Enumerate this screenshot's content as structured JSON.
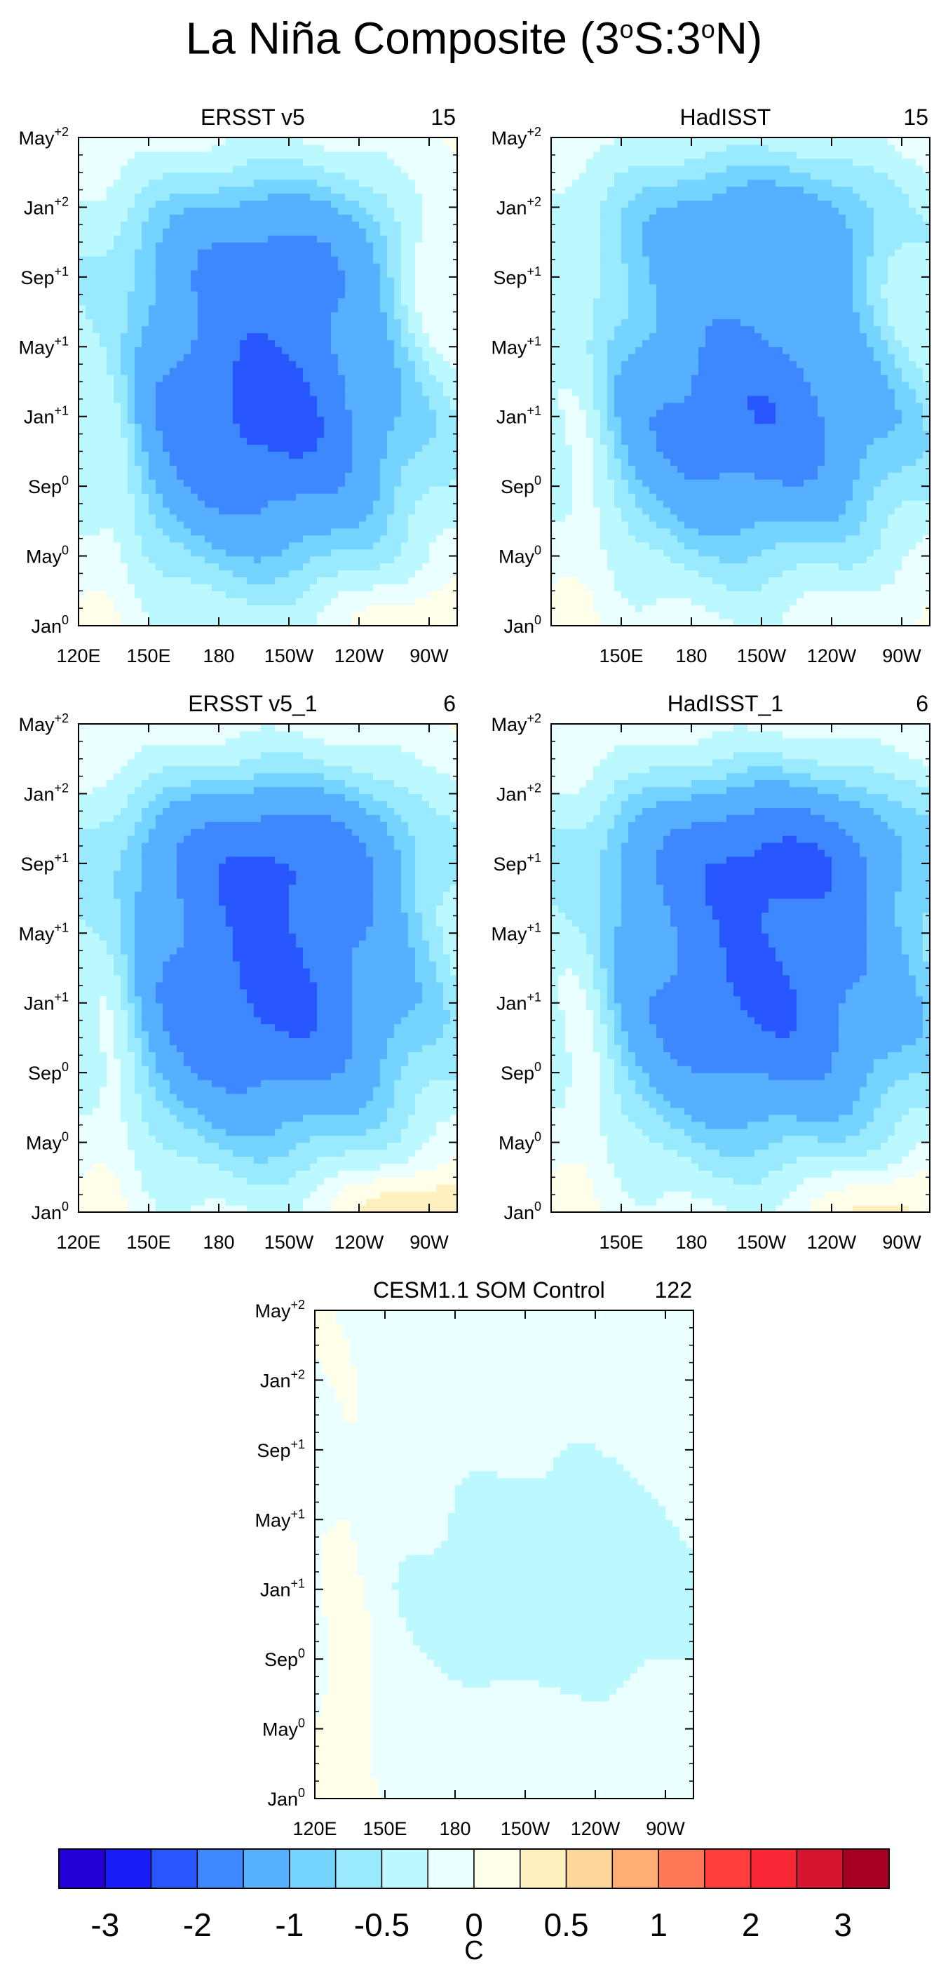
{
  "title": "La Niña Composite (3°S:3°N)",
  "title_parts": {
    "main": "La Niña Composite (3",
    "deg1": "o",
    "mid": "S:3",
    "deg2": "o",
    "end": "N)"
  },
  "chart_data": [
    {
      "type": "heatmap",
      "title": "ERSST v5",
      "count": "15",
      "x_ticks": [
        "120E",
        "150E",
        "180",
        "150W",
        "120W",
        "90W"
      ],
      "x_range_lon_east": [
        120,
        282
      ],
      "y_ticks": [
        {
          "base": "Jan",
          "sup": "0"
        },
        {
          "base": "May",
          "sup": "0"
        },
        {
          "base": "Sep",
          "sup": "0"
        },
        {
          "base": "Jan",
          "sup": "+1"
        },
        {
          "base": "May",
          "sup": "+1"
        },
        {
          "base": "Sep",
          "sup": "+1"
        },
        {
          "base": "Jan",
          "sup": "+2"
        },
        {
          "base": "May",
          "sup": "+2"
        }
      ],
      "y_range_months": [
        0,
        28
      ],
      "field": {
        "center_lon": 198,
        "center_month": 12,
        "lon_sigma": 48,
        "month_sigma": 6.2,
        "peak": -2.2,
        "second_center_month": 22,
        "second_peak": -1.0,
        "west_warm": 0.45,
        "east_warm_late": 0.5,
        "early_east_warm": 0.35
      }
    },
    {
      "type": "heatmap",
      "title": "HadISST",
      "count": "15",
      "x_ticks": [
        "150E",
        "180",
        "150W",
        "120W",
        "90W"
      ],
      "x_range_lon_east": [
        120,
        282
      ],
      "y_ticks": [
        {
          "base": "Jan",
          "sup": "0"
        },
        {
          "base": "May",
          "sup": "0"
        },
        {
          "base": "Sep",
          "sup": "0"
        },
        {
          "base": "Jan",
          "sup": "+1"
        },
        {
          "base": "May",
          "sup": "+1"
        },
        {
          "base": "Sep",
          "sup": "+1"
        },
        {
          "base": "Jan",
          "sup": "+2"
        },
        {
          "base": "May",
          "sup": "+2"
        }
      ],
      "y_range_months": [
        0,
        28
      ],
      "field": {
        "center_lon": 205,
        "center_month": 12,
        "lon_sigma": 52,
        "month_sigma": 5.8,
        "peak": -1.9,
        "second_center_month": 23,
        "second_peak": -1.1,
        "west_warm": 0.4,
        "east_warm_late": 0.3,
        "early_east_warm": 0.15
      }
    },
    {
      "type": "heatmap",
      "title": "ERSST v5_1",
      "count": "6",
      "x_ticks": [
        "120E",
        "150E",
        "180",
        "150W",
        "120W",
        "90W"
      ],
      "x_range_lon_east": [
        120,
        282
      ],
      "y_ticks": [
        {
          "base": "Jan",
          "sup": "0"
        },
        {
          "base": "May",
          "sup": "0"
        },
        {
          "base": "Sep",
          "sup": "0"
        },
        {
          "base": "Jan",
          "sup": "+1"
        },
        {
          "base": "May",
          "sup": "+1"
        },
        {
          "base": "Sep",
          "sup": "+1"
        },
        {
          "base": "Jan",
          "sup": "+2"
        },
        {
          "base": "May",
          "sup": "+2"
        }
      ],
      "y_range_months": [
        0,
        28
      ],
      "field": {
        "center_lon": 200,
        "center_month": 12,
        "lon_sigma": 50,
        "month_sigma": 6.0,
        "peak": -2.1,
        "second_center_month": 21,
        "second_peak": -1.3,
        "west_warm": 0.5,
        "east_warm_late": 0.2,
        "early_east_warm": 0.6
      }
    },
    {
      "type": "heatmap",
      "title": "HadISST_1",
      "count": "6",
      "x_ticks": [
        "150E",
        "180",
        "150W",
        "120W",
        "90W"
      ],
      "x_range_lon_east": [
        120,
        282
      ],
      "y_ticks": [
        {
          "base": "Jan",
          "sup": "0"
        },
        {
          "base": "May",
          "sup": "0"
        },
        {
          "base": "Sep",
          "sup": "0"
        },
        {
          "base": "Jan",
          "sup": "+1"
        },
        {
          "base": "May",
          "sup": "+1"
        },
        {
          "base": "Sep",
          "sup": "+1"
        },
        {
          "base": "Jan",
          "sup": "+2"
        },
        {
          "base": "May",
          "sup": "+2"
        }
      ],
      "y_range_months": [
        0,
        28
      ],
      "field": {
        "center_lon": 210,
        "center_month": 12,
        "lon_sigma": 54,
        "month_sigma": 6.0,
        "peak": -2.0,
        "second_center_month": 21,
        "second_peak": -1.4,
        "west_warm": 0.45,
        "east_warm_late": 0.2,
        "early_east_warm": 0.5
      }
    },
    {
      "type": "heatmap",
      "title": "CESM1.1 SOM Control",
      "count": "122",
      "x_ticks": [
        "120E",
        "150E",
        "180",
        "150W",
        "120W",
        "90W"
      ],
      "x_range_lon_east": [
        120,
        282
      ],
      "y_ticks": [
        {
          "base": "Jan",
          "sup": "0"
        },
        {
          "base": "May",
          "sup": "0"
        },
        {
          "base": "Sep",
          "sup": "0"
        },
        {
          "base": "Jan",
          "sup": "+1"
        },
        {
          "base": "May",
          "sup": "+1"
        },
        {
          "base": "Sep",
          "sup": "+1"
        },
        {
          "base": "Jan",
          "sup": "+2"
        },
        {
          "base": "May",
          "sup": "+2"
        }
      ],
      "y_range_months": [
        0,
        28
      ],
      "field": {
        "center_lon": 225,
        "center_month": 12,
        "lon_sigma": 60,
        "month_sigma": 5.5,
        "peak": -0.45,
        "second_center_month": 22,
        "second_peak": -0.1,
        "west_warm": 0.2,
        "east_warm_late": 0.0,
        "early_east_warm": 0.0
      }
    }
  ],
  "colorbar": {
    "unit": "C",
    "labels": [
      "-3",
      "-2",
      "-1",
      "-0.5",
      "0",
      "0.5",
      "1",
      "2",
      "3"
    ],
    "levels": [
      -3.0,
      -2.5,
      -2.0,
      -1.5,
      -1.0,
      -0.75,
      -0.5,
      -0.25,
      0,
      0.25,
      0.5,
      0.75,
      1.0,
      1.5,
      2.0,
      2.5,
      3.0
    ],
    "colors": [
      "#2400d8",
      "#181cf7",
      "#2857ff",
      "#3d87ff",
      "#56b0ff",
      "#75d3ff",
      "#99eaff",
      "#bcf9ff",
      "#eaffff",
      "#ffffea",
      "#fff1bf",
      "#ffd699",
      "#ffac75",
      "#ff7856",
      "#ff3d3d",
      "#f72735",
      "#d8152f",
      "#a50021"
    ]
  }
}
